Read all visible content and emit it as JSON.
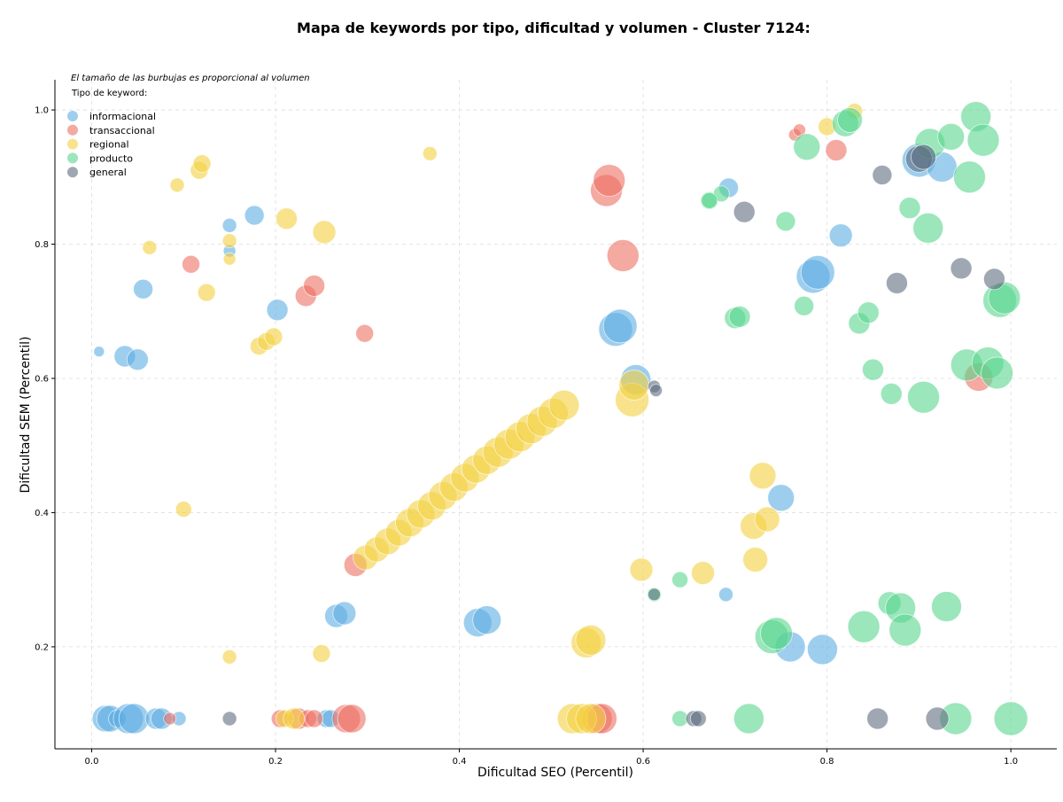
{
  "chart_data": {
    "type": "scatter",
    "title": "Mapa de keywords por tipo, dificultad y volumen - Cluster 7124:",
    "xlabel": "Dificultad SEO (Percentil)",
    "ylabel": "Dificultad SEM (Percentil)",
    "xlim": [
      -0.04,
      1.05
    ],
    "ylim": [
      0.048,
      1.045
    ],
    "xticks": [
      0.0,
      0.2,
      0.4,
      0.6,
      0.8,
      1.0
    ],
    "xtick_labels": [
      "0.0",
      "0.2",
      "0.4",
      "0.6",
      "0.8",
      "1.0"
    ],
    "yticks": [
      0.2,
      0.4,
      0.6,
      0.8,
      1.0
    ],
    "ytick_labels": [
      "0.2",
      "0.4",
      "0.6",
      "0.8",
      "1.0"
    ],
    "grid": true,
    "note": "El tamaño de las burbujas es proporcional al volumen",
    "legend": {
      "title": "Tipo de keyword:",
      "placement": "top-left",
      "entries": [
        {
          "key": "informacional",
          "label": "informacional",
          "color": "#5dade2"
        },
        {
          "key": "transaccional",
          "label": "transaccional",
          "color": "#ec7063"
        },
        {
          "key": "regional",
          "label": "regional",
          "color": "#f4d03f"
        },
        {
          "key": "producto",
          "label": "producto",
          "color": "#58d68d"
        },
        {
          "key": "general",
          "label": "general",
          "color": "#5d6d7e"
        }
      ]
    },
    "series": [
      {
        "name": "informacional",
        "color": "#5dade2",
        "opacity": 0.6,
        "points": [
          {
            "x": 0.008,
            "y": 0.64,
            "r": 6
          },
          {
            "x": 0.036,
            "y": 0.633,
            "r": 12
          },
          {
            "x": 0.05,
            "y": 0.628,
            "r": 12
          },
          {
            "x": 0.056,
            "y": 0.733,
            "r": 11
          },
          {
            "x": 0.15,
            "y": 0.828,
            "r": 8
          },
          {
            "x": 0.15,
            "y": 0.79,
            "r": 7
          },
          {
            "x": 0.177,
            "y": 0.843,
            "r": 11
          },
          {
            "x": 0.202,
            "y": 0.702,
            "r": 12
          },
          {
            "x": 0.266,
            "y": 0.246,
            "r": 13
          },
          {
            "x": 0.275,
            "y": 0.25,
            "r": 13
          },
          {
            "x": 0.42,
            "y": 0.236,
            "r": 16
          },
          {
            "x": 0.43,
            "y": 0.24,
            "r": 16
          },
          {
            "x": 0.57,
            "y": 0.673,
            "r": 19
          },
          {
            "x": 0.575,
            "y": 0.678,
            "r": 19
          },
          {
            "x": 0.592,
            "y": 0.598,
            "r": 17
          },
          {
            "x": 0.69,
            "y": 0.278,
            "r": 8
          },
          {
            "x": 0.693,
            "y": 0.884,
            "r": 11
          },
          {
            "x": 0.75,
            "y": 0.422,
            "r": 15
          },
          {
            "x": 0.76,
            "y": 0.2,
            "r": 17
          },
          {
            "x": 0.785,
            "y": 0.752,
            "r": 19
          },
          {
            "x": 0.79,
            "y": 0.758,
            "r": 19
          },
          {
            "x": 0.795,
            "y": 0.196,
            "r": 17
          },
          {
            "x": 0.815,
            "y": 0.813,
            "r": 13
          },
          {
            "x": 0.9,
            "y": 0.925,
            "r": 19
          },
          {
            "x": 0.925,
            "y": 0.915,
            "r": 17
          },
          {
            "x": 0.015,
            "y": 0.093,
            "r": 15
          },
          {
            "x": 0.02,
            "y": 0.093,
            "r": 15
          },
          {
            "x": 0.028,
            "y": 0.093,
            "r": 10
          },
          {
            "x": 0.04,
            "y": 0.093,
            "r": 17
          },
          {
            "x": 0.046,
            "y": 0.093,
            "r": 17
          },
          {
            "x": 0.07,
            "y": 0.093,
            "r": 12
          },
          {
            "x": 0.076,
            "y": 0.093,
            "r": 12
          },
          {
            "x": 0.095,
            "y": 0.093,
            "r": 8
          },
          {
            "x": 0.255,
            "y": 0.093,
            "r": 10
          },
          {
            "x": 0.26,
            "y": 0.093,
            "r": 10
          }
        ]
      },
      {
        "name": "transaccional",
        "color": "#ec7063",
        "opacity": 0.6,
        "points": [
          {
            "x": 0.108,
            "y": 0.77,
            "r": 10
          },
          {
            "x": 0.233,
            "y": 0.723,
            "r": 12
          },
          {
            "x": 0.242,
            "y": 0.738,
            "r": 12
          },
          {
            "x": 0.297,
            "y": 0.667,
            "r": 10
          },
          {
            "x": 0.287,
            "y": 0.322,
            "r": 13
          },
          {
            "x": 0.56,
            "y": 0.88,
            "r": 18
          },
          {
            "x": 0.563,
            "y": 0.895,
            "r": 18
          },
          {
            "x": 0.578,
            "y": 0.783,
            "r": 18
          },
          {
            "x": 0.765,
            "y": 0.963,
            "r": 7
          },
          {
            "x": 0.77,
            "y": 0.97,
            "r": 7
          },
          {
            "x": 0.81,
            "y": 0.94,
            "r": 12
          },
          {
            "x": 0.965,
            "y": 0.602,
            "r": 16
          },
          {
            "x": 0.085,
            "y": 0.093,
            "r": 7
          },
          {
            "x": 0.205,
            "y": 0.093,
            "r": 10
          },
          {
            "x": 0.225,
            "y": 0.093,
            "r": 12
          },
          {
            "x": 0.235,
            "y": 0.093,
            "r": 10
          },
          {
            "x": 0.242,
            "y": 0.093,
            "r": 10
          },
          {
            "x": 0.277,
            "y": 0.093,
            "r": 16
          },
          {
            "x": 0.283,
            "y": 0.093,
            "r": 16
          },
          {
            "x": 0.55,
            "y": 0.093,
            "r": 17
          },
          {
            "x": 0.555,
            "y": 0.093,
            "r": 17
          }
        ]
      },
      {
        "name": "regional",
        "color": "#f4d03f",
        "opacity": 0.6,
        "points": [
          {
            "x": 0.063,
            "y": 0.795,
            "r": 8
          },
          {
            "x": 0.093,
            "y": 0.888,
            "r": 8
          },
          {
            "x": 0.1,
            "y": 0.405,
            "r": 9
          },
          {
            "x": 0.117,
            "y": 0.91,
            "r": 10
          },
          {
            "x": 0.12,
            "y": 0.92,
            "r": 10
          },
          {
            "x": 0.125,
            "y": 0.728,
            "r": 10
          },
          {
            "x": 0.15,
            "y": 0.805,
            "r": 8
          },
          {
            "x": 0.15,
            "y": 0.778,
            "r": 7
          },
          {
            "x": 0.15,
            "y": 0.185,
            "r": 8
          },
          {
            "x": 0.182,
            "y": 0.648,
            "r": 10
          },
          {
            "x": 0.19,
            "y": 0.655,
            "r": 10
          },
          {
            "x": 0.198,
            "y": 0.662,
            "r": 10
          },
          {
            "x": 0.212,
            "y": 0.838,
            "r": 12
          },
          {
            "x": 0.25,
            "y": 0.19,
            "r": 10
          },
          {
            "x": 0.253,
            "y": 0.818,
            "r": 13
          },
          {
            "x": 0.368,
            "y": 0.935,
            "r": 8
          },
          {
            "x": 0.298,
            "y": 0.333,
            "r": 14
          },
          {
            "x": 0.31,
            "y": 0.345,
            "r": 14
          },
          {
            "x": 0.322,
            "y": 0.357,
            "r": 15
          },
          {
            "x": 0.334,
            "y": 0.37,
            "r": 15
          },
          {
            "x": 0.346,
            "y": 0.385,
            "r": 16
          },
          {
            "x": 0.358,
            "y": 0.398,
            "r": 16
          },
          {
            "x": 0.37,
            "y": 0.41,
            "r": 16
          },
          {
            "x": 0.382,
            "y": 0.425,
            "r": 16
          },
          {
            "x": 0.394,
            "y": 0.438,
            "r": 16
          },
          {
            "x": 0.406,
            "y": 0.452,
            "r": 16
          },
          {
            "x": 0.418,
            "y": 0.465,
            "r": 16
          },
          {
            "x": 0.43,
            "y": 0.478,
            "r": 16
          },
          {
            "x": 0.442,
            "y": 0.49,
            "r": 17
          },
          {
            "x": 0.454,
            "y": 0.502,
            "r": 17
          },
          {
            "x": 0.466,
            "y": 0.513,
            "r": 17
          },
          {
            "x": 0.478,
            "y": 0.525,
            "r": 17
          },
          {
            "x": 0.49,
            "y": 0.536,
            "r": 17
          },
          {
            "x": 0.502,
            "y": 0.548,
            "r": 17
          },
          {
            "x": 0.514,
            "y": 0.56,
            "r": 17
          },
          {
            "x": 0.588,
            "y": 0.568,
            "r": 19
          },
          {
            "x": 0.59,
            "y": 0.59,
            "r": 17
          },
          {
            "x": 0.598,
            "y": 0.315,
            "r": 13
          },
          {
            "x": 0.665,
            "y": 0.31,
            "r": 13
          },
          {
            "x": 0.722,
            "y": 0.33,
            "r": 14
          },
          {
            "x": 0.72,
            "y": 0.38,
            "r": 15
          },
          {
            "x": 0.73,
            "y": 0.455,
            "r": 15
          },
          {
            "x": 0.735,
            "y": 0.39,
            "r": 14
          },
          {
            "x": 0.8,
            "y": 0.975,
            "r": 10
          },
          {
            "x": 0.83,
            "y": 0.998,
            "r": 9
          },
          {
            "x": 0.538,
            "y": 0.206,
            "r": 17
          },
          {
            "x": 0.543,
            "y": 0.21,
            "r": 17
          },
          {
            "x": 0.21,
            "y": 0.093,
            "r": 10
          },
          {
            "x": 0.22,
            "y": 0.093,
            "r": 12
          },
          {
            "x": 0.523,
            "y": 0.093,
            "r": 17
          },
          {
            "x": 0.533,
            "y": 0.093,
            "r": 17
          },
          {
            "x": 0.543,
            "y": 0.093,
            "r": 17
          }
        ]
      },
      {
        "name": "producto",
        "color": "#58d68d",
        "opacity": 0.6,
        "points": [
          {
            "x": 0.64,
            "y": 0.3,
            "r": 9
          },
          {
            "x": 0.672,
            "y": 0.865,
            "r": 10
          },
          {
            "x": 0.685,
            "y": 0.875,
            "r": 9
          },
          {
            "x": 0.7,
            "y": 0.69,
            "r": 12
          },
          {
            "x": 0.705,
            "y": 0.692,
            "r": 12
          },
          {
            "x": 0.715,
            "y": 0.093,
            "r": 17
          },
          {
            "x": 0.74,
            "y": 0.215,
            "r": 19
          },
          {
            "x": 0.745,
            "y": 0.22,
            "r": 18
          },
          {
            "x": 0.755,
            "y": 0.834,
            "r": 11
          },
          {
            "x": 0.775,
            "y": 0.708,
            "r": 11
          },
          {
            "x": 0.778,
            "y": 0.945,
            "r": 15
          },
          {
            "x": 0.82,
            "y": 0.98,
            "r": 15
          },
          {
            "x": 0.825,
            "y": 0.985,
            "r": 14
          },
          {
            "x": 0.84,
            "y": 0.23,
            "r": 18
          },
          {
            "x": 0.835,
            "y": 0.682,
            "r": 12
          },
          {
            "x": 0.845,
            "y": 0.698,
            "r": 12
          },
          {
            "x": 0.85,
            "y": 0.613,
            "r": 12
          },
          {
            "x": 0.868,
            "y": 0.265,
            "r": 13
          },
          {
            "x": 0.87,
            "y": 0.577,
            "r": 12
          },
          {
            "x": 0.88,
            "y": 0.258,
            "r": 17
          },
          {
            "x": 0.885,
            "y": 0.225,
            "r": 18
          },
          {
            "x": 0.89,
            "y": 0.854,
            "r": 12
          },
          {
            "x": 0.905,
            "y": 0.572,
            "r": 18
          },
          {
            "x": 0.91,
            "y": 0.824,
            "r": 17
          },
          {
            "x": 0.912,
            "y": 0.95,
            "r": 17
          },
          {
            "x": 0.93,
            "y": 0.26,
            "r": 17
          },
          {
            "x": 0.935,
            "y": 0.96,
            "r": 15
          },
          {
            "x": 0.94,
            "y": 0.093,
            "r": 18
          },
          {
            "x": 0.952,
            "y": 0.62,
            "r": 18
          },
          {
            "x": 0.955,
            "y": 0.9,
            "r": 18
          },
          {
            "x": 0.962,
            "y": 0.99,
            "r": 17
          },
          {
            "x": 0.97,
            "y": 0.955,
            "r": 18
          },
          {
            "x": 0.975,
            "y": 0.623,
            "r": 18
          },
          {
            "x": 0.985,
            "y": 0.608,
            "r": 18
          },
          {
            "x": 0.988,
            "y": 0.716,
            "r": 19
          },
          {
            "x": 0.993,
            "y": 0.72,
            "r": 18
          },
          {
            "x": 1.0,
            "y": 0.093,
            "r": 19
          },
          {
            "x": 0.64,
            "y": 0.093,
            "r": 9
          },
          {
            "x": 0.612,
            "y": 0.278,
            "r": 8
          },
          {
            "x": 0.672,
            "y": 0.865,
            "r": 9
          }
        ]
      },
      {
        "name": "general",
        "color": "#5d6d7e",
        "opacity": 0.6,
        "points": [
          {
            "x": 0.15,
            "y": 0.093,
            "r": 8
          },
          {
            "x": 0.612,
            "y": 0.588,
            "r": 7
          },
          {
            "x": 0.614,
            "y": 0.582,
            "r": 7
          },
          {
            "x": 0.612,
            "y": 0.278,
            "r": 7
          },
          {
            "x": 0.655,
            "y": 0.093,
            "r": 9
          },
          {
            "x": 0.66,
            "y": 0.093,
            "r": 9
          },
          {
            "x": 0.71,
            "y": 0.848,
            "r": 12
          },
          {
            "x": 0.855,
            "y": 0.093,
            "r": 12
          },
          {
            "x": 0.86,
            "y": 0.903,
            "r": 11
          },
          {
            "x": 0.876,
            "y": 0.742,
            "r": 12
          },
          {
            "x": 0.9,
            "y": 0.927,
            "r": 15
          },
          {
            "x": 0.905,
            "y": 0.93,
            "r": 14
          },
          {
            "x": 0.92,
            "y": 0.093,
            "r": 13
          },
          {
            "x": 0.946,
            "y": 0.764,
            "r": 12
          },
          {
            "x": 0.982,
            "y": 0.748,
            "r": 12
          }
        ]
      }
    ]
  }
}
